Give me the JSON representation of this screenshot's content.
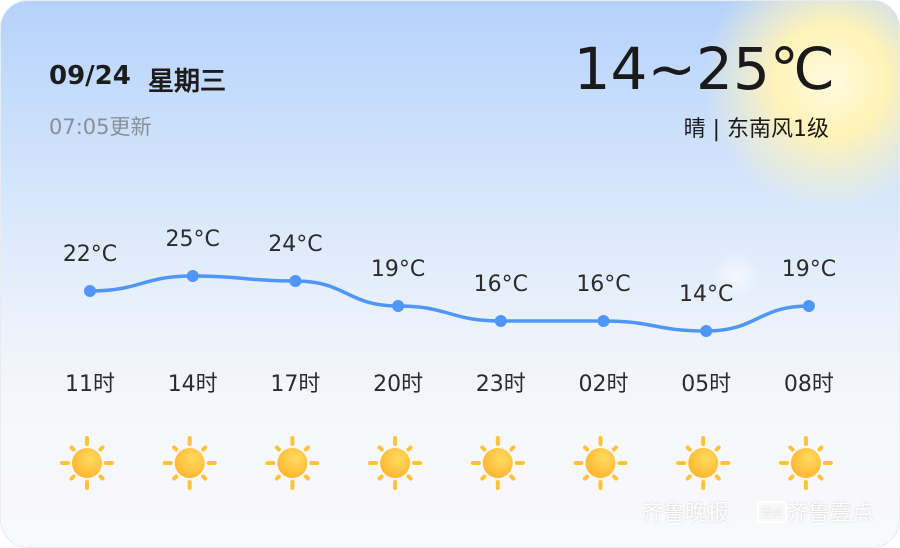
{
  "header": {
    "date": "09/24",
    "weekday": "星期三",
    "updated": "07:05更新",
    "range": "14~25℃",
    "condition": "晴 | 东南风1级"
  },
  "chart_data": {
    "type": "line",
    "categories": [
      "11时",
      "14时",
      "17时",
      "20时",
      "23时",
      "02时",
      "05时",
      "08时"
    ],
    "values": [
      22,
      25,
      24,
      19,
      16,
      16,
      14,
      19
    ],
    "value_labels": [
      "22°C",
      "25°C",
      "24°C",
      "19°C",
      "16°C",
      "16°C",
      "14°C",
      "19°C"
    ],
    "icons": [
      "sunny-icon",
      "sunny-icon",
      "sunny-icon",
      "sunny-icon",
      "sunny-icon",
      "sunny-icon",
      "sunny-icon",
      "sunny-icon"
    ],
    "line_color": "#4f96fb"
  },
  "watermark": {
    "paper": "齐鲁晚报",
    "app_badge": "壹点",
    "app": "齐鲁壹点"
  }
}
